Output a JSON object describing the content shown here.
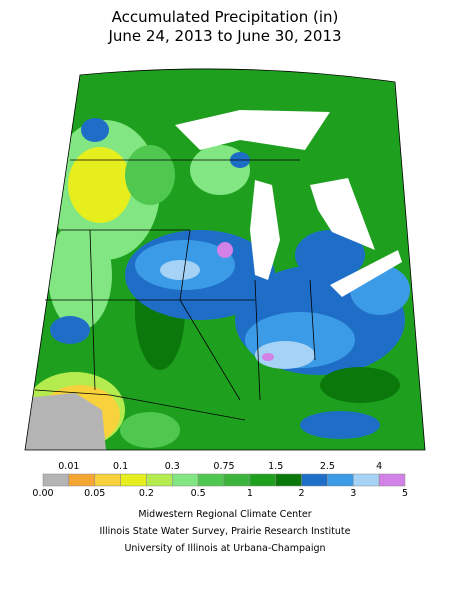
{
  "title": [
    "Accumulated Precipitation (in)",
    "June 24, 2013 to June 30, 2013"
  ],
  "legend": {
    "edges": [
      "0.00",
      "0.01",
      "0.05",
      "0.1",
      "0.2",
      "0.3",
      "0.5",
      "0.75",
      "1",
      "1.5",
      "2",
      "2.5",
      "3",
      "4",
      "5"
    ],
    "colors": [
      "#b4b4b4",
      "#f5a532",
      "#f7d23c",
      "#e6ee1e",
      "#b4ec50",
      "#82e682",
      "#50c850",
      "#3cb43c",
      "#1ea01e",
      "#0a780a",
      "#1e6ec8",
      "#3c9be6",
      "#a5d2f5",
      "#d282e6"
    ]
  },
  "credits": [
    "Midwestern Regional Climate Center",
    "Illinois State Water Survey, Prairie Research Institute",
    "University of Illinois at Urbana-Champaign"
  ]
}
